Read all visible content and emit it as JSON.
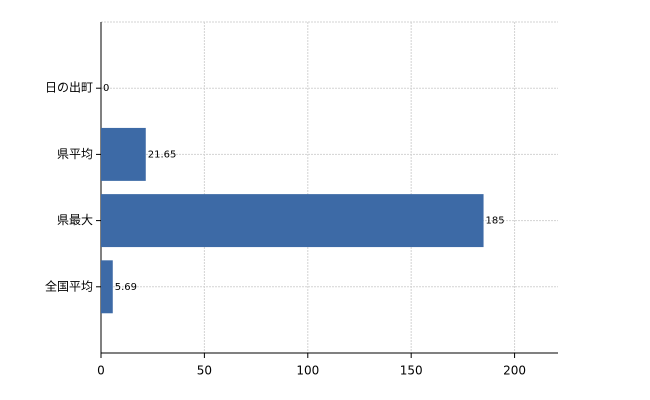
{
  "chart_data": {
    "type": "hbar",
    "categories": [
      "日の出町",
      "県平均",
      "県最大",
      "全国平均"
    ],
    "values": [
      0,
      21.65,
      185,
      5.69
    ],
    "color": "#3d6aa6",
    "xlim": [
      0,
      221
    ],
    "xticks": [
      0,
      50,
      100,
      150,
      200
    ],
    "grid": true
  }
}
